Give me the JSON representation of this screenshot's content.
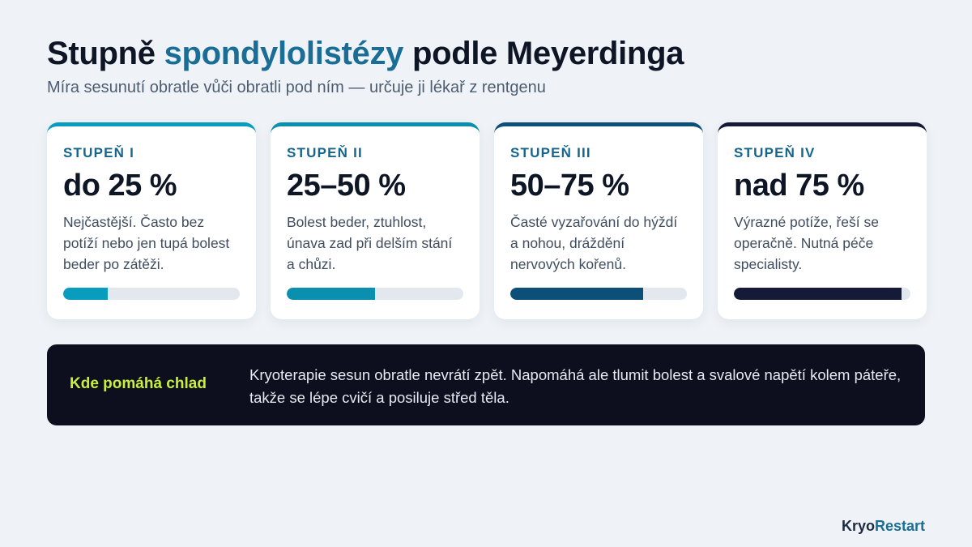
{
  "header": {
    "title_pre": "Stupně ",
    "title_accent": "spondylolistézy",
    "title_post": " podle Meyerdinga",
    "subtitle": "Míra sesunutí obratle vůči obratli pod ním — určuje ji lékař z rentgenu"
  },
  "cards": [
    {
      "label": "STUPEŇ I",
      "value": "do 25 %",
      "description": "Nejčastější. Často bez potíží nebo jen tupá bolest beder po zátěži.",
      "severity": 0.25,
      "color": "#0a9cbf"
    },
    {
      "label": "STUPEŇ II",
      "value": "25–50 %",
      "description": "Bolest beder, ztuhlost, únava zad při delším stání a chůzi.",
      "severity": 0.5,
      "color": "#0b8fae"
    },
    {
      "label": "STUPEŇ III",
      "value": "50–75 %",
      "description": "Časté vyzařování do hýždí a nohou, dráždění nervových kořenů.",
      "severity": 0.75,
      "color": "#0c4f78"
    },
    {
      "label": "STUPEŇ IV",
      "value": "nad 75 %",
      "description": "Výrazné potíže, řeší se operačně. Nutná péče specialisty.",
      "severity": 0.95,
      "color": "#151a38"
    }
  ],
  "banner": {
    "label": "Kde pomáhá chlad",
    "text": "Kryoterapie sesun obratle nevrátí zpět. Napomáhá ale tlumit bolest a svalové napětí kolem páteře, takže se lépe cvičí a posiluje střed těla."
  },
  "brand": {
    "part1": "Kryo",
    "part2": "Restart"
  }
}
